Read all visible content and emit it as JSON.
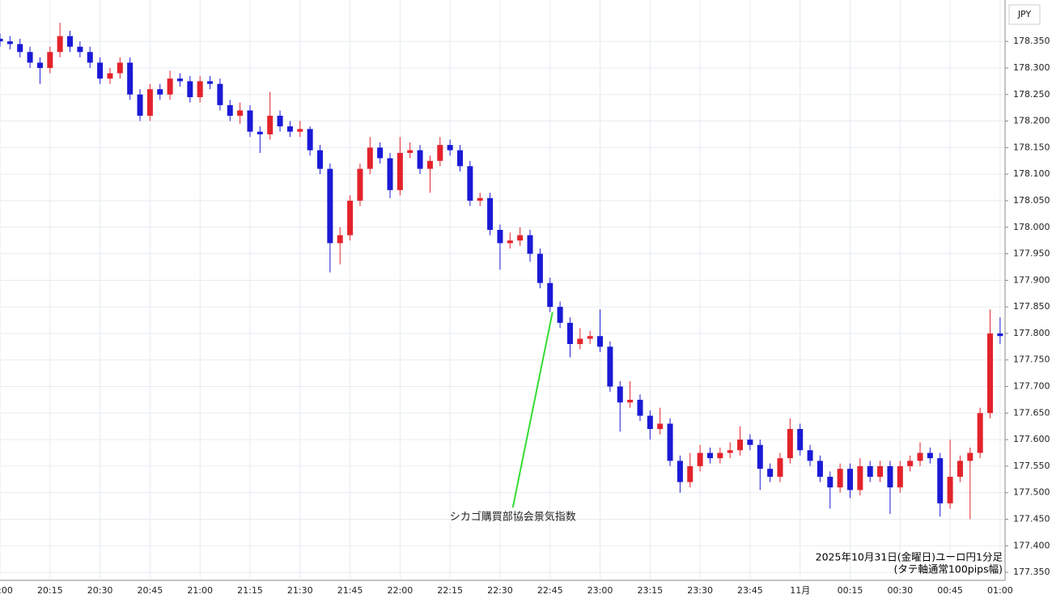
{
  "chart_data": {
    "type": "candlestick",
    "currency": "JPY",
    "footnote": [
      "2025年10月31日(金曜日)ユーロ円1分足",
      "(タテ軸通常100pips幅)"
    ],
    "annotations": [
      {
        "text": "シカゴ購買部協会景気指数",
        "x": "22:45"
      }
    ],
    "x": [
      "20:00",
      "20:03",
      "20:06",
      "20:09",
      "20:12",
      "20:15",
      "20:18",
      "20:21",
      "20:24",
      "20:27",
      "20:30",
      "20:33",
      "20:36",
      "20:39",
      "20:42",
      "20:45",
      "20:48",
      "20:51",
      "20:54",
      "20:57",
      "21:00",
      "21:03",
      "21:06",
      "21:09",
      "21:12",
      "21:15",
      "21:18",
      "21:21",
      "21:24",
      "21:27",
      "21:30",
      "21:33",
      "21:36",
      "21:39",
      "21:42",
      "21:45",
      "21:48",
      "21:51",
      "21:54",
      "21:57",
      "22:00",
      "22:03",
      "22:06",
      "22:09",
      "22:12",
      "22:15",
      "22:18",
      "22:21",
      "22:24",
      "22:27",
      "22:30",
      "22:33",
      "22:36",
      "22:39",
      "22:42",
      "22:45",
      "22:48",
      "22:51",
      "22:54",
      "22:57",
      "23:00",
      "23:03",
      "23:06",
      "23:09",
      "23:12",
      "23:15",
      "23:18",
      "23:21",
      "23:24",
      "23:27",
      "23:30",
      "23:33",
      "23:36",
      "23:39",
      "23:42",
      "23:45",
      "23:48",
      "23:51",
      "23:54",
      "23:57",
      "00:00",
      "00:03",
      "00:06",
      "00:09",
      "00:12",
      "00:15",
      "00:18",
      "00:21",
      "00:24",
      "00:27",
      "00:30",
      "00:33",
      "00:36",
      "00:39",
      "00:42",
      "00:45",
      "00:48",
      "00:51",
      "00:54",
      "00:57",
      "01:00"
    ],
    "open": [
      178.355,
      178.35,
      178.345,
      178.33,
      178.31,
      178.3,
      178.33,
      178.36,
      178.34,
      178.33,
      178.31,
      178.28,
      178.29,
      178.31,
      178.25,
      178.21,
      178.26,
      178.25,
      178.28,
      178.275,
      178.245,
      178.275,
      178.27,
      178.23,
      178.21,
      178.22,
      178.18,
      178.175,
      178.21,
      178.19,
      178.18,
      178.185,
      178.145,
      178.11,
      177.97,
      177.985,
      178.05,
      178.11,
      178.15,
      178.13,
      178.07,
      178.14,
      178.145,
      178.11,
      178.125,
      178.155,
      178.145,
      178.115,
      178.05,
      178.055,
      177.995,
      177.97,
      177.975,
      177.985,
      177.95,
      177.895,
      177.85,
      177.82,
      177.78,
      177.79,
      177.795,
      177.775,
      177.7,
      177.67,
      177.675,
      177.645,
      177.62,
      177.63,
      177.56,
      177.52,
      177.55,
      177.575,
      177.565,
      177.575,
      177.58,
      177.6,
      177.59,
      177.545,
      177.53,
      177.565,
      177.62,
      177.58,
      177.56,
      177.53,
      177.51,
      177.545,
      177.505,
      177.55,
      177.53,
      177.55,
      177.51,
      177.55,
      177.56,
      177.575,
      177.565,
      177.48,
      177.53,
      177.56,
      177.575,
      177.65,
      177.8
    ],
    "high": [
      178.365,
      178.36,
      178.355,
      178.34,
      178.32,
      178.34,
      178.385,
      178.37,
      178.35,
      178.34,
      178.32,
      178.3,
      178.32,
      178.32,
      178.26,
      178.27,
      178.27,
      178.295,
      178.29,
      178.285,
      178.285,
      178.285,
      178.28,
      178.24,
      178.235,
      178.23,
      178.19,
      178.255,
      178.22,
      178.2,
      178.2,
      178.19,
      178.155,
      178.12,
      178.0,
      178.06,
      178.12,
      178.17,
      178.16,
      178.14,
      178.17,
      178.16,
      178.155,
      178.135,
      178.17,
      178.165,
      178.155,
      178.125,
      178.065,
      178.065,
      178.005,
      177.99,
      178.0,
      177.995,
      177.96,
      177.905,
      177.86,
      177.83,
      177.81,
      177.805,
      177.845,
      177.785,
      177.71,
      177.71,
      177.685,
      177.655,
      177.66,
      177.64,
      177.57,
      177.575,
      177.59,
      177.585,
      177.585,
      177.595,
      177.625,
      177.61,
      177.6,
      177.555,
      177.575,
      177.64,
      177.63,
      177.59,
      177.57,
      177.54,
      177.555,
      177.555,
      177.565,
      177.56,
      177.56,
      177.56,
      177.56,
      177.57,
      177.595,
      177.585,
      177.575,
      177.6,
      177.57,
      177.585,
      177.66,
      177.845,
      177.83
    ],
    "low": [
      178.34,
      178.335,
      178.32,
      178.3,
      178.27,
      178.29,
      178.32,
      178.33,
      178.32,
      178.3,
      178.27,
      178.27,
      178.28,
      178.24,
      178.2,
      178.2,
      178.24,
      178.24,
      178.265,
      178.235,
      178.235,
      178.26,
      178.22,
      178.2,
      178.195,
      178.17,
      178.14,
      178.165,
      178.18,
      178.17,
      178.17,
      178.135,
      178.1,
      177.915,
      177.93,
      177.975,
      178.04,
      178.1,
      178.12,
      178.055,
      178.06,
      178.13,
      178.1,
      178.065,
      178.115,
      178.135,
      178.105,
      178.04,
      178.04,
      177.985,
      177.92,
      177.96,
      177.965,
      177.935,
      177.885,
      177.84,
      177.81,
      177.755,
      177.77,
      177.78,
      177.765,
      177.69,
      177.615,
      177.66,
      177.635,
      177.6,
      177.61,
      177.55,
      177.5,
      177.51,
      177.54,
      177.555,
      177.555,
      177.565,
      177.57,
      177.58,
      177.505,
      177.52,
      177.52,
      177.555,
      177.57,
      177.55,
      177.52,
      177.47,
      177.5,
      177.49,
      177.495,
      177.52,
      177.52,
      177.46,
      177.5,
      177.54,
      177.55,
      177.555,
      177.455,
      177.47,
      177.52,
      177.45,
      177.565,
      177.64,
      177.78
    ],
    "close": [
      178.35,
      178.345,
      178.33,
      178.31,
      178.3,
      178.33,
      178.36,
      178.34,
      178.33,
      178.31,
      178.28,
      178.29,
      178.31,
      178.25,
      178.21,
      178.26,
      178.25,
      178.28,
      178.275,
      178.245,
      178.275,
      178.27,
      178.23,
      178.21,
      178.22,
      178.18,
      178.175,
      178.21,
      178.19,
      178.18,
      178.185,
      178.145,
      178.11,
      177.97,
      177.985,
      178.05,
      178.11,
      178.15,
      178.13,
      178.07,
      178.14,
      178.145,
      178.11,
      178.125,
      178.155,
      178.145,
      178.115,
      178.05,
      178.055,
      177.995,
      177.97,
      177.975,
      177.985,
      177.95,
      177.895,
      177.85,
      177.82,
      177.78,
      177.79,
      177.795,
      177.775,
      177.7,
      177.67,
      177.675,
      177.645,
      177.62,
      177.63,
      177.56,
      177.52,
      177.55,
      177.575,
      177.565,
      177.575,
      177.58,
      177.6,
      177.59,
      177.545,
      177.53,
      177.565,
      177.62,
      177.58,
      177.56,
      177.53,
      177.51,
      177.545,
      177.505,
      177.55,
      177.53,
      177.55,
      177.51,
      177.55,
      177.56,
      177.575,
      177.565,
      177.48,
      177.53,
      177.56,
      177.575,
      177.65,
      177.8,
      177.795
    ],
    "up_color": "#e3232b",
    "down_color": "#1a1ad6",
    "annotation_color": "#33dd33",
    "xlim": [
      "20:00",
      "01:01"
    ],
    "xticks": [
      "20:00",
      "20:15",
      "20:30",
      "20:45",
      "21:00",
      "21:15",
      "21:30",
      "21:45",
      "22:00",
      "22:15",
      "22:30",
      "22:45",
      "23:00",
      "23:15",
      "23:30",
      "23:45",
      {
        "value": "00:00",
        "label": "11月"
      },
      "00:15",
      "00:30",
      "00:45",
      "01:00"
    ],
    "ylim": [
      177.338,
      178.428
    ],
    "yticks": [
      {
        "value": 177.35,
        "label": "177.350"
      },
      {
        "value": 177.4,
        "label": "177.400"
      },
      {
        "value": 177.45,
        "label": "177.450"
      },
      {
        "value": 177.5,
        "label": "177.500"
      },
      {
        "value": 177.55,
        "label": "177.550"
      },
      {
        "value": 177.6,
        "label": "177.600"
      },
      {
        "value": 177.65,
        "label": "177.650"
      },
      {
        "value": 177.7,
        "label": "177.700"
      },
      {
        "value": 177.75,
        "label": "177.750"
      },
      {
        "value": 177.8,
        "label": "177.800"
      },
      {
        "value": 177.85,
        "label": "177.850"
      },
      {
        "value": 177.9,
        "label": "177.900"
      },
      {
        "value": 177.95,
        "label": "177.950"
      },
      {
        "value": 178.0,
        "label": "178.000"
      },
      {
        "value": 178.05,
        "label": "178.050"
      },
      {
        "value": 178.1,
        "label": "178.100"
      },
      {
        "value": 178.15,
        "label": "178.150"
      },
      {
        "value": 178.2,
        "label": "178.200"
      },
      {
        "value": 178.25,
        "label": "178.250"
      },
      {
        "value": 178.3,
        "label": "178.300"
      },
      {
        "value": 178.35,
        "label": "178.350"
      }
    ],
    "grid": true
  }
}
